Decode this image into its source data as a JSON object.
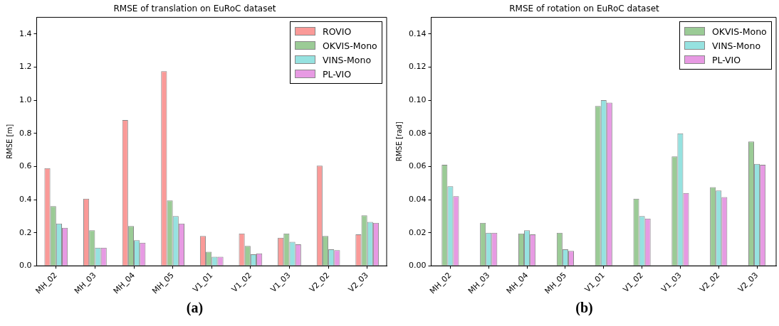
{
  "chart_data": [
    {
      "type": "bar",
      "title": "RMSE of translation on EuRoC dataset",
      "ylabel": "RMSE [m]",
      "categories": [
        "MH_02",
        "MH_03",
        "MH_04",
        "MH_05",
        "V1_01",
        "V1_02",
        "V1_03",
        "V2_02",
        "V2_03"
      ],
      "series": [
        {
          "name": "ROVIO",
          "color": "#fa9a98",
          "values": [
            0.59,
            0.405,
            0.88,
            1.175,
            0.18,
            0.195,
            0.17,
            0.605,
            0.19
          ]
        },
        {
          "name": "OKVIS-Mono",
          "color": "#9bcb96",
          "values": [
            0.36,
            0.215,
            0.24,
            0.395,
            0.085,
            0.12,
            0.195,
            0.18,
            0.305
          ]
        },
        {
          "name": "VINS-Mono",
          "color": "#96e2e0",
          "values": [
            0.255,
            0.11,
            0.155,
            0.3,
            0.055,
            0.07,
            0.145,
            0.1,
            0.265
          ]
        },
        {
          "name": "PL-VIO",
          "color": "#e79ae3",
          "values": [
            0.23,
            0.11,
            0.14,
            0.255,
            0.055,
            0.075,
            0.13,
            0.095,
            0.26
          ]
        }
      ],
      "ylim": [
        0,
        1.5
      ],
      "yticks": [
        {
          "value": 0,
          "label": "0.0"
        },
        {
          "value": 0.2,
          "label": "0.2"
        },
        {
          "value": 0.4,
          "label": "0.4"
        },
        {
          "value": 0.6,
          "label": "0.6"
        },
        {
          "value": 0.8,
          "label": "0.8"
        },
        {
          "value": 1,
          "label": "1.0"
        },
        {
          "value": 1.2,
          "label": "1.2"
        },
        {
          "value": 1.4,
          "label": "1.4"
        }
      ],
      "grid": false,
      "legend": "top right",
      "annotations": [
        "(a)"
      ]
    },
    {
      "type": "bar",
      "title": "RMSE of rotation on EuRoC dataset",
      "ylabel": "RMSE [rad]",
      "categories": [
        "MH_02",
        "MH_03",
        "MH_04",
        "MH_05",
        "V1_01",
        "V1_02",
        "V1_03",
        "V2_02",
        "V2_03"
      ],
      "series": [
        {
          "name": "OKVIS-Mono",
          "color": "#9bcb96",
          "values": [
            0.061,
            0.026,
            0.0195,
            0.02,
            0.0965,
            0.0405,
            0.066,
            0.0475,
            0.075
          ]
        },
        {
          "name": "VINS-Mono",
          "color": "#96e2e0",
          "values": [
            0.048,
            0.02,
            0.0215,
            0.01,
            0.1,
            0.03,
            0.08,
            0.0455,
            0.0615
          ]
        },
        {
          "name": "PL-VIO",
          "color": "#e79ae3",
          "values": [
            0.042,
            0.02,
            0.019,
            0.009,
            0.0985,
            0.0285,
            0.044,
            0.0415,
            0.061
          ]
        }
      ],
      "ylim": [
        0,
        0.15
      ],
      "yticks": [
        {
          "value": 0,
          "label": "0.00"
        },
        {
          "value": 0.02,
          "label": "0.02"
        },
        {
          "value": 0.04,
          "label": "0.04"
        },
        {
          "value": 0.06,
          "label": "0.06"
        },
        {
          "value": 0.08,
          "label": "0.08"
        },
        {
          "value": 0.1,
          "label": "0.10"
        },
        {
          "value": 0.12,
          "label": "0.12"
        },
        {
          "value": 0.14,
          "label": "0.14"
        }
      ],
      "grid": false,
      "legend": "top right",
      "annotations": [
        "(b)"
      ]
    }
  ]
}
